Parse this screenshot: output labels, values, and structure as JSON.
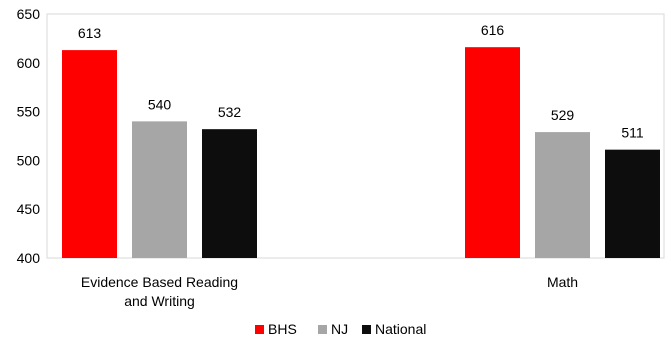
{
  "chart_data": {
    "type": "bar",
    "title": "",
    "xlabel": "",
    "ylabel": "",
    "ylim": [
      400,
      650
    ],
    "yticks": [
      400,
      450,
      500,
      550,
      600,
      650
    ],
    "grid": false,
    "legend_position": "bottom",
    "categories": [
      [
        "Evidence Based Reading",
        "and Writing"
      ],
      [
        "Math"
      ]
    ],
    "series": [
      {
        "name": "BHS",
        "color": "#ff0000",
        "values": [
          613,
          616
        ]
      },
      {
        "name": "NJ",
        "color": "#a6a6a6",
        "values": [
          540,
          529
        ]
      },
      {
        "name": "National",
        "color": "#0d0d0d",
        "values": [
          532,
          511
        ]
      }
    ]
  }
}
